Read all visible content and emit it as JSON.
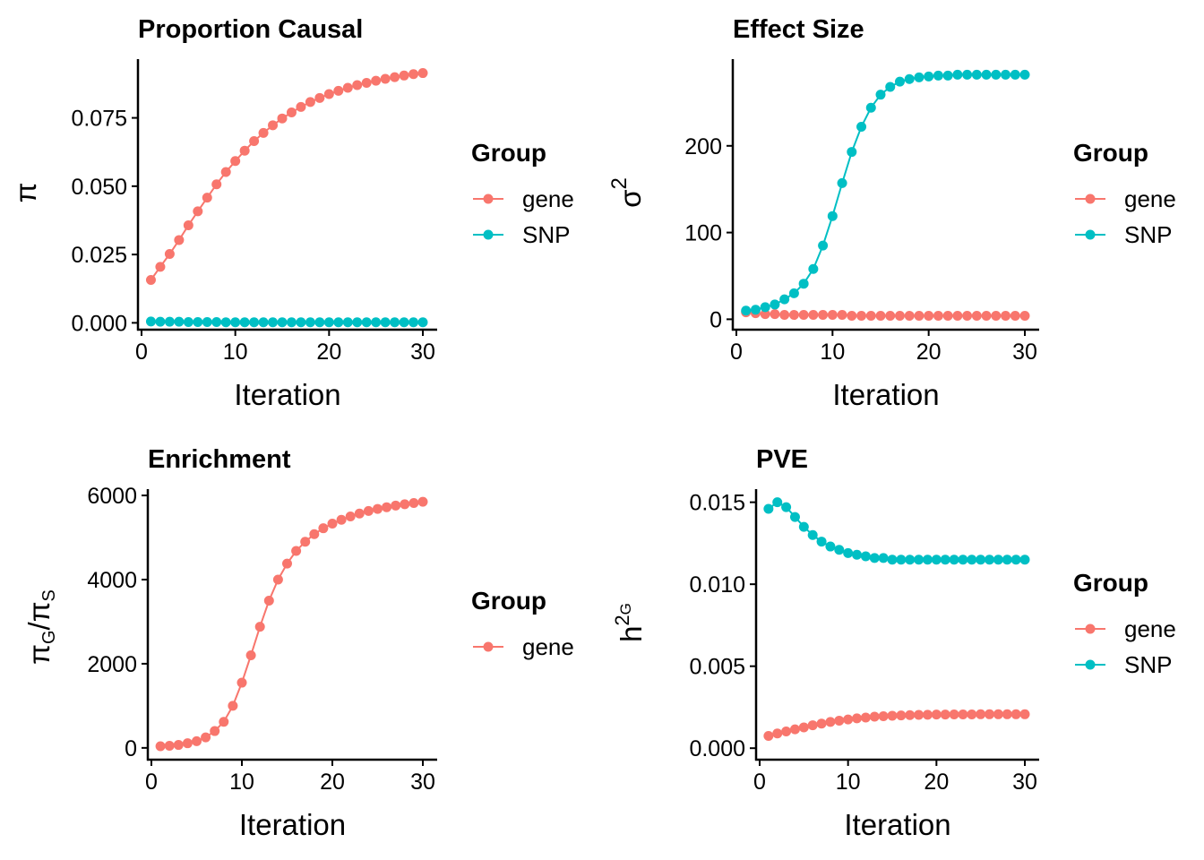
{
  "colors": {
    "gene": "#F8766D",
    "SNP": "#00BFC4"
  },
  "chart_data": [
    {
      "type": "line",
      "title": "Proportion Causal",
      "xlabel": "Iteration",
      "ylabel": "π",
      "xlim": [
        0,
        30
      ],
      "ylim": [
        -0.0025,
        0.0965
      ],
      "xticks": [
        "0",
        "10",
        "20",
        "30"
      ],
      "yticks": [
        "0.000",
        "0.025",
        "0.050",
        "0.075"
      ],
      "legend_title": "Group",
      "legend_items": [
        "gene",
        "SNP"
      ],
      "x": [
        1,
        2,
        3,
        4,
        5,
        6,
        7,
        8,
        9,
        10,
        11,
        12,
        13,
        14,
        15,
        16,
        17,
        18,
        19,
        20,
        21,
        22,
        23,
        24,
        25,
        26,
        27,
        28,
        29,
        30
      ],
      "series": [
        {
          "name": "gene",
          "values": [
            0.0157,
            0.0205,
            0.0252,
            0.0303,
            0.0357,
            0.0408,
            0.0458,
            0.0507,
            0.0552,
            0.0592,
            0.063,
            0.0665,
            0.0695,
            0.0723,
            0.0748,
            0.077,
            0.079,
            0.0808,
            0.0823,
            0.0837,
            0.0849,
            0.086,
            0.087,
            0.0878,
            0.0886,
            0.0893,
            0.0899,
            0.0905,
            0.091,
            0.0914
          ]
        },
        {
          "name": "SNP",
          "values": [
            0.0005,
            0.0004,
            0.0004,
            0.0004,
            0.0003,
            0.0003,
            0.0003,
            0.0003,
            0.0002,
            0.0002,
            0.0002,
            0.0002,
            0.0002,
            0.0002,
            0.0002,
            0.0002,
            0.0002,
            0.0002,
            0.0002,
            0.0002,
            0.0002,
            0.0002,
            0.0002,
            0.0002,
            0.0002,
            0.0002,
            0.0002,
            0.0002,
            0.0002,
            0.0002
          ]
        }
      ]
    },
    {
      "type": "line",
      "title": "Effect Size",
      "xlabel": "Iteration",
      "ylabel": "σ",
      "ylabel_sup": "2",
      "xlim": [
        0,
        30
      ],
      "ylim": [
        -12,
        300
      ],
      "xticks": [
        "0",
        "10",
        "20",
        "30"
      ],
      "yticks": [
        "0",
        "100",
        "200"
      ],
      "legend_title": "Group",
      "legend_items": [
        "gene",
        "SNP"
      ],
      "x": [
        1,
        2,
        3,
        4,
        5,
        6,
        7,
        8,
        9,
        10,
        11,
        12,
        13,
        14,
        15,
        16,
        17,
        18,
        19,
        20,
        21,
        22,
        23,
        24,
        25,
        26,
        27,
        28,
        29,
        30
      ],
      "series": [
        {
          "name": "gene",
          "values": [
            8,
            7,
            6,
            6,
            5,
            5,
            5,
            5,
            5,
            5,
            5,
            4,
            4,
            4,
            4,
            4,
            4,
            4,
            4,
            4,
            4,
            4,
            4,
            4,
            4,
            4,
            4,
            4,
            4,
            4
          ]
        },
        {
          "name": "SNP",
          "values": [
            10,
            11,
            14,
            17,
            23,
            30,
            41,
            58,
            85,
            119,
            157,
            193,
            222,
            244,
            259,
            268,
            274,
            277,
            279,
            280,
            281,
            281,
            282,
            282,
            282,
            282,
            282,
            282,
            282,
            282
          ]
        }
      ]
    },
    {
      "type": "line",
      "title": "Enrichment",
      "xlabel": "Iteration",
      "ylabel": "π",
      "ylabel_sub1": "G",
      "ylabel_mid": "/π",
      "ylabel_sub2": "S",
      "xlim": [
        0,
        30
      ],
      "ylim": [
        -280,
        6150
      ],
      "xticks": [
        "0",
        "10",
        "20",
        "30"
      ],
      "yticks": [
        "0",
        "2000",
        "4000",
        "6000"
      ],
      "legend_title": "Group",
      "legend_items": [
        "gene"
      ],
      "x": [
        1,
        2,
        3,
        4,
        5,
        6,
        7,
        8,
        9,
        10,
        11,
        12,
        13,
        14,
        15,
        16,
        17,
        18,
        19,
        20,
        21,
        22,
        23,
        24,
        25,
        26,
        27,
        28,
        29,
        30
      ],
      "series": [
        {
          "name": "gene",
          "values": [
            40,
            50,
            70,
            110,
            160,
            250,
            400,
            620,
            1000,
            1550,
            2200,
            2880,
            3500,
            4000,
            4380,
            4680,
            4900,
            5080,
            5220,
            5330,
            5420,
            5500,
            5570,
            5630,
            5680,
            5720,
            5760,
            5790,
            5820,
            5850
          ]
        }
      ]
    },
    {
      "type": "line",
      "title": "PVE",
      "xlabel": "Iteration",
      "ylabel": "h",
      "ylabel_sup": "2",
      "ylabel_sub": "G",
      "xlim": [
        0,
        30
      ],
      "ylim": [
        -0.0007,
        0.0158
      ],
      "xticks": [
        "0",
        "10",
        "20",
        "30"
      ],
      "yticks": [
        "0.000",
        "0.005",
        "0.010",
        "0.015"
      ],
      "legend_title": "Group",
      "legend_items": [
        "gene",
        "SNP"
      ],
      "x": [
        1,
        2,
        3,
        4,
        5,
        6,
        7,
        8,
        9,
        10,
        11,
        12,
        13,
        14,
        15,
        16,
        17,
        18,
        19,
        20,
        21,
        22,
        23,
        24,
        25,
        26,
        27,
        28,
        29,
        30
      ],
      "series": [
        {
          "name": "gene",
          "values": [
            0.00075,
            0.0009,
            0.00102,
            0.00115,
            0.00127,
            0.0014,
            0.0015,
            0.0016,
            0.00168,
            0.00175,
            0.00182,
            0.00187,
            0.00192,
            0.00195,
            0.00198,
            0.002,
            0.00202,
            0.00203,
            0.00204,
            0.00205,
            0.00205,
            0.00206,
            0.00206,
            0.00206,
            0.00207,
            0.00207,
            0.00207,
            0.00207,
            0.00207,
            0.00207
          ]
        },
        {
          "name": "SNP",
          "values": [
            0.0146,
            0.015,
            0.0147,
            0.0141,
            0.0135,
            0.013,
            0.0126,
            0.0123,
            0.0121,
            0.0119,
            0.0118,
            0.0117,
            0.0116,
            0.0116,
            0.0115,
            0.0115,
            0.0115,
            0.0115,
            0.0115,
            0.0115,
            0.0115,
            0.0115,
            0.0115,
            0.0115,
            0.0115,
            0.0115,
            0.0115,
            0.0115,
            0.0115,
            0.0115
          ]
        }
      ]
    }
  ]
}
